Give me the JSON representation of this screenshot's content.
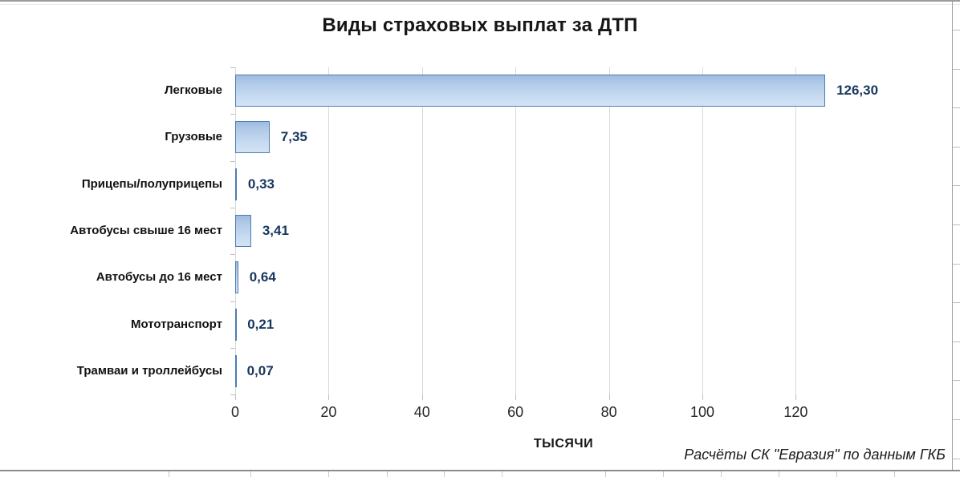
{
  "chart_data": {
    "type": "bar",
    "orientation": "horizontal",
    "title": "Виды страховых выплат за ДТП",
    "categories": [
      "Легковые",
      "Грузовые",
      "Прицепы/полуприцепы",
      "Автобусы свыше 16 мест",
      "Автобусы до 16 мест",
      "Мототранспорт",
      "Трамваи и троллейбусы"
    ],
    "values": [
      126.3,
      7.35,
      0.33,
      3.41,
      0.64,
      0.21,
      0.07
    ],
    "value_labels": [
      "126,30",
      "7,35",
      "0,33",
      "3,41",
      "0,64",
      "0,21",
      "0,07"
    ],
    "xlabel": "ТЫСЯЧИ",
    "ylabel": "",
    "x_ticks": [
      0,
      20,
      40,
      60,
      80,
      100,
      120
    ],
    "xlim": [
      0,
      130
    ],
    "grid": true,
    "legend": "none",
    "source_note": "Расчёты СК \"Евразия\" по данным ГКБ",
    "colors": {
      "bar_fill_top": "#9dbce1",
      "bar_fill_bottom": "#d3e3f4",
      "bar_border": "#4c7db2",
      "value_label": "#17375e",
      "gridline": "#d9d9d9",
      "text": "#161616"
    }
  }
}
